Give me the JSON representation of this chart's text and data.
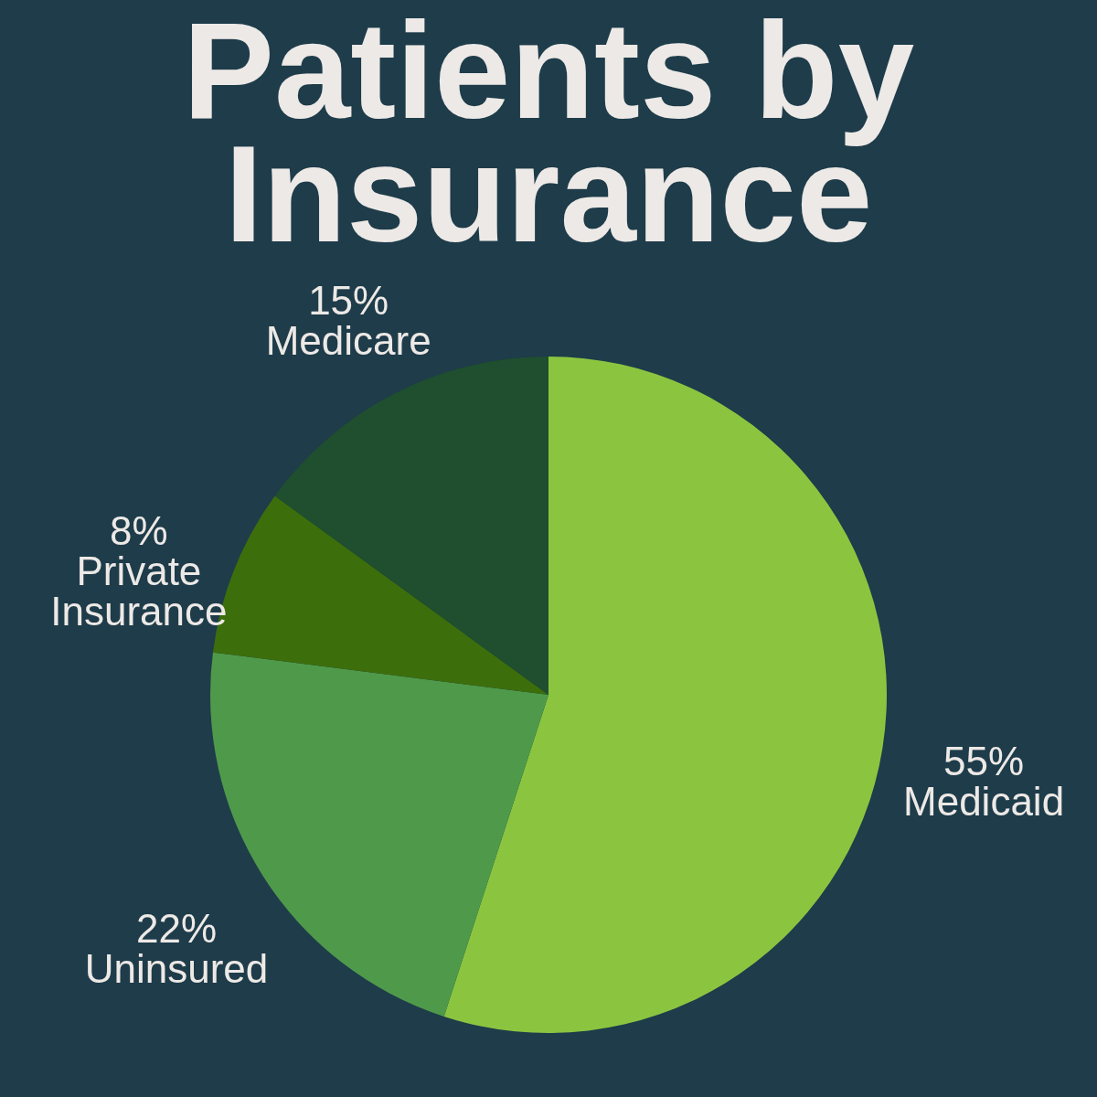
{
  "chart_data": {
    "type": "pie",
    "title": "Patients by Insurance",
    "categories": [
      "Medicaid",
      "Uninsured",
      "Private Insurance",
      "Medicare"
    ],
    "values": [
      55,
      22,
      8,
      15
    ],
    "value_labels": [
      "55%",
      "22%",
      "8%",
      "15%"
    ],
    "colors": [
      "#8bc540",
      "#4f9a4a",
      "#3d6e0c",
      "#1f4f2e"
    ]
  }
}
